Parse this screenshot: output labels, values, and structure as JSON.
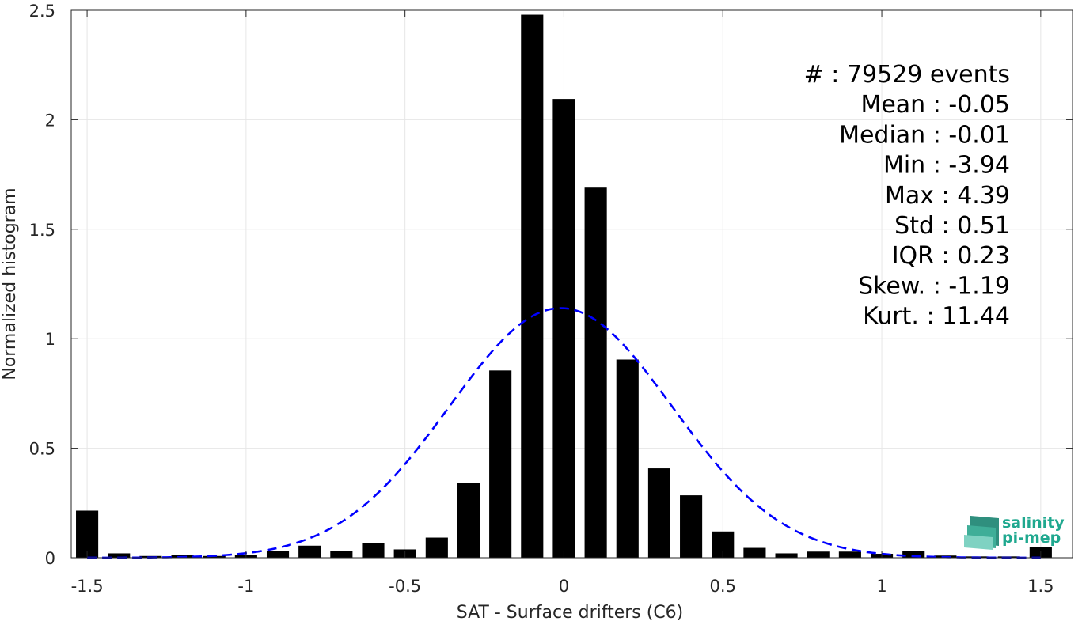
{
  "chart_data": {
    "type": "bar",
    "xlabel": "SAT - Surface drifters (C6)",
    "ylabel": "Normalized histogram",
    "xlim": [
      -1.55,
      1.6
    ],
    "ylim": [
      0,
      2.5
    ],
    "grid": true,
    "x_ticks": [
      -1.5,
      -1,
      -0.5,
      0,
      0.5,
      1,
      1.5
    ],
    "x_tick_labels": [
      "-1.5",
      "-1",
      "-0.5",
      "0",
      "0.5",
      "1",
      "1.5"
    ],
    "y_ticks": [
      0,
      0.5,
      1,
      1.5,
      2,
      2.5
    ],
    "y_tick_labels": [
      "0",
      "0.5",
      "1",
      "1.5",
      "2",
      "2.5"
    ],
    "bar_width": 0.07,
    "bar_color": "#000000",
    "x": [
      -1.5,
      -1.4,
      -1.3,
      -1.2,
      -1.1,
      -1.0,
      -0.9,
      -0.8,
      -0.7,
      -0.6,
      -0.5,
      -0.4,
      -0.3,
      -0.2,
      -0.1,
      0.0,
      0.1,
      0.2,
      0.3,
      0.4,
      0.5,
      0.6,
      0.7,
      0.8,
      0.9,
      1.0,
      1.1,
      1.2,
      1.3,
      1.4,
      1.5
    ],
    "values": [
      0.215,
      0.02,
      0.008,
      0.012,
      0.008,
      0.012,
      0.032,
      0.055,
      0.032,
      0.068,
      0.038,
      0.092,
      0.34,
      0.855,
      2.48,
      2.095,
      1.69,
      0.905,
      0.408,
      0.285,
      0.12,
      0.045,
      0.02,
      0.028,
      0.028,
      0.018,
      0.03,
      0.01,
      0.006,
      0.006,
      0.05
    ],
    "fit": {
      "type": "normal",
      "mean": -0.01,
      "std": 0.35,
      "color": "#0000ff",
      "style": "dashed"
    },
    "annotations": [
      "#  : 79529 events",
      "Mean : -0.05",
      "Median : -0.01",
      "Min : -3.94",
      "Max : 4.39",
      "Std : 0.51",
      "IQR : 0.23",
      "Skew. : -1.19",
      "Kurt. : 11.44"
    ]
  },
  "logo": {
    "line1": "salinity",
    "line2": "pi-mep",
    "color": "#1fa88f"
  }
}
